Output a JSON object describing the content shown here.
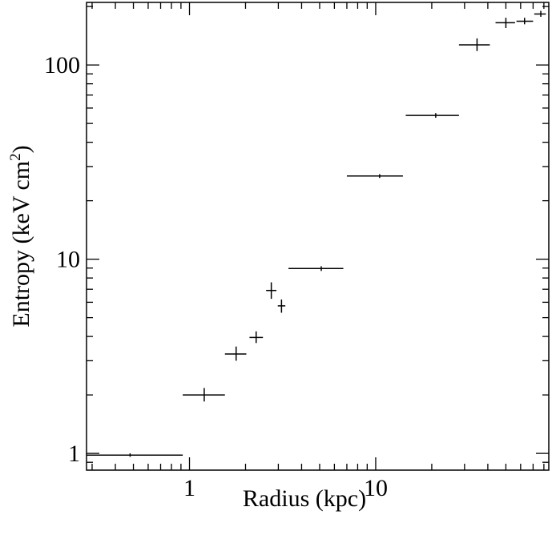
{
  "chart_data": {
    "type": "scatter",
    "xlabel": "Radius (kpc)",
    "ylabel_main": "Entropy (keV cm",
    "ylabel_sup": "2",
    "ylabel_close": ")",
    "x_scale": "log",
    "y_scale": "log",
    "xlim": [
      0.28,
      85
    ],
    "ylim": [
      0.82,
      210
    ],
    "x_major_ticks": [
      1,
      10
    ],
    "y_major_ticks": [
      1,
      10,
      100
    ],
    "x_tick_labels": [
      "1",
      "10"
    ],
    "y_tick_labels": [
      "1",
      "10",
      "100"
    ],
    "grid": false,
    "legend": "none",
    "colors": {
      "marks": "#000000",
      "background": "#ffffff"
    },
    "points": [
      {
        "x": 0.48,
        "xlo": 0.28,
        "xhi": 0.92,
        "y": 0.98,
        "ylo": 0.96,
        "yhi": 1.0
      },
      {
        "x": 1.2,
        "xlo": 0.92,
        "xhi": 1.55,
        "y": 2.0,
        "ylo": 1.85,
        "yhi": 2.17
      },
      {
        "x": 1.78,
        "xlo": 1.55,
        "xhi": 2.02,
        "y": 3.25,
        "ylo": 3.0,
        "yhi": 3.55
      },
      {
        "x": 2.28,
        "xlo": 2.1,
        "xhi": 2.48,
        "y": 3.95,
        "ylo": 3.7,
        "yhi": 4.25
      },
      {
        "x": 2.75,
        "xlo": 2.58,
        "xhi": 2.93,
        "y": 6.9,
        "ylo": 6.25,
        "yhi": 7.6
      },
      {
        "x": 3.12,
        "xlo": 2.98,
        "xhi": 3.27,
        "y": 5.75,
        "ylo": 5.3,
        "yhi": 6.2
      },
      {
        "x": 5.1,
        "xlo": 3.4,
        "xhi": 6.7,
        "y": 8.95,
        "ylo": 8.7,
        "yhi": 9.2
      },
      {
        "x": 10.5,
        "xlo": 7.0,
        "xhi": 14.0,
        "y": 26.8,
        "ylo": 26.2,
        "yhi": 27.4
      },
      {
        "x": 21.0,
        "xlo": 14.5,
        "xhi": 28.0,
        "y": 55.0,
        "ylo": 53.5,
        "yhi": 56.5
      },
      {
        "x": 35.0,
        "xlo": 28.0,
        "xhi": 41.0,
        "y": 127.0,
        "ylo": 118.0,
        "yhi": 137.0
      },
      {
        "x": 50.0,
        "xlo": 44.0,
        "xhi": 56.0,
        "y": 165.0,
        "ylo": 155.0,
        "yhi": 175.0
      },
      {
        "x": 63.0,
        "xlo": 57.0,
        "xhi": 70.0,
        "y": 168.0,
        "ylo": 162.0,
        "yhi": 175.0
      },
      {
        "x": 77.0,
        "xlo": 71.0,
        "xhi": 82.0,
        "y": 183.0,
        "ylo": 177.0,
        "yhi": 190.0
      }
    ]
  }
}
